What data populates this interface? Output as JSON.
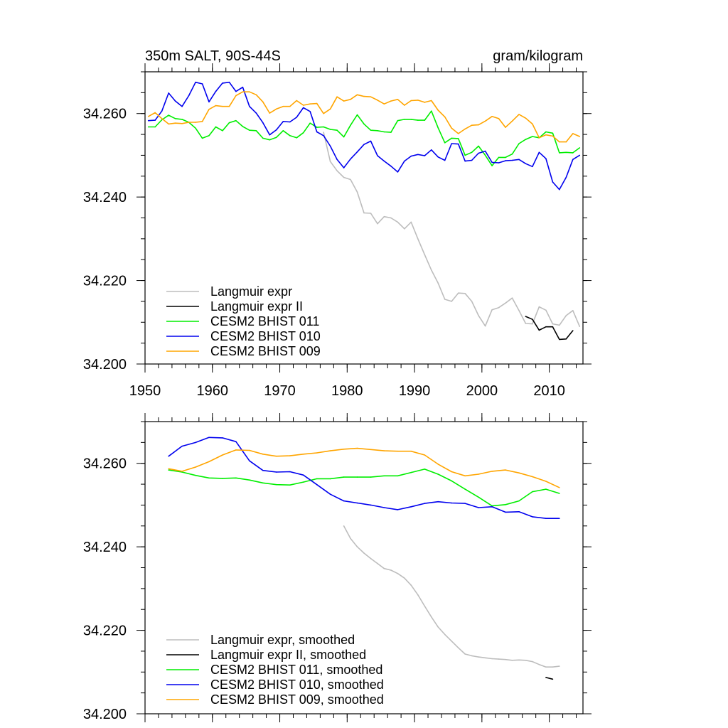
{
  "chart_data": [
    {
      "type": "line",
      "title": "350m SALT, 90S-44S",
      "units": "gram/kilogram",
      "xlabel": "",
      "ylabel": "",
      "xlim": [
        1950,
        2015
      ],
      "ylim": [
        34.2,
        34.27
      ],
      "xticks": [
        1950,
        1960,
        1970,
        1980,
        1990,
        2000,
        2010
      ],
      "xtick_labels": [
        "1950",
        "1960",
        "1970",
        "1980",
        "1990",
        "2000",
        "2010"
      ],
      "yticks": [
        34.2,
        34.22,
        34.24,
        34.26
      ],
      "ytick_labels": [
        "34.200",
        "34.220",
        "34.240",
        "34.260"
      ],
      "grid": false,
      "legend_position": "bottom-left",
      "series": [
        {
          "name": "Langmuir expr",
          "color": "#bdbdbd",
          "x": [
            1976.5,
            1977.5,
            1978.5,
            1979.5,
            1980.5,
            1981.5,
            1982.5,
            1983.5,
            1984.5,
            1985.5,
            1986.5,
            1987.5,
            1988.5,
            1989.5,
            1990.5,
            1991.5,
            1992.5,
            1993.5,
            1994.5,
            1995.5,
            1996.5,
            1997.5,
            1998.5,
            1999.5,
            2000.5,
            2001.5,
            2002.5,
            2003.5,
            2004.5,
            2005.5,
            2006.5,
            2007.5,
            2008.5,
            2009.5,
            2010.5,
            2011.5,
            2012.5,
            2013.5,
            2014.5
          ],
          "values": [
            34.2555,
            34.2485,
            34.2463,
            34.2447,
            34.2442,
            34.2412,
            34.2362,
            34.2361,
            34.2336,
            34.2353,
            34.235,
            34.234,
            34.2324,
            34.234,
            34.23,
            34.2262,
            34.2225,
            34.2194,
            34.2155,
            34.215,
            34.217,
            34.2169,
            34.215,
            34.2116,
            34.2091,
            34.213,
            34.2135,
            34.2146,
            34.2158,
            34.2128,
            34.2097,
            34.2096,
            34.2137,
            34.2129,
            34.2096,
            34.2093,
            34.2116,
            34.2128,
            34.209
          ]
        },
        {
          "name": "Langmuir expr II",
          "color": "#000000",
          "x": [
            2006.5,
            2007.5,
            2008.5,
            2009.5,
            2010.5,
            2011.5,
            2012.5,
            2013.5
          ],
          "values": [
            34.2114,
            34.2107,
            34.2081,
            34.2089,
            34.2089,
            34.2059,
            34.206,
            34.208
          ]
        },
        {
          "name": "CESM2 BHIST 011",
          "color": "#00ee00",
          "x": [
            1950.5,
            1951.5,
            1952.5,
            1953.5,
            1954.5,
            1955.5,
            1956.5,
            1957.5,
            1958.5,
            1959.5,
            1960.5,
            1961.5,
            1962.5,
            1963.5,
            1964.5,
            1965.5,
            1966.5,
            1967.5,
            1968.5,
            1969.5,
            1970.5,
            1971.5,
            1972.5,
            1973.5,
            1974.5,
            1975.5,
            1976.5,
            1977.5,
            1978.5,
            1979.5,
            1980.5,
            1981.5,
            1982.5,
            1983.5,
            1984.5,
            1985.5,
            1986.5,
            1987.5,
            1988.5,
            1989.5,
            1990.5,
            1991.5,
            1992.5,
            1993.5,
            1994.5,
            1995.5,
            1996.5,
            1997.5,
            1998.5,
            1999.5,
            2000.5,
            2001.5,
            2002.5,
            2003.5,
            2004.5,
            2005.5,
            2006.5,
            2007.5,
            2008.5,
            2009.5,
            2010.5,
            2011.5,
            2012.5,
            2013.5,
            2014.5
          ],
          "values": [
            34.2568,
            34.2568,
            34.2585,
            34.2596,
            34.2588,
            34.2586,
            34.2579,
            34.2565,
            34.2541,
            34.2547,
            34.2568,
            34.2559,
            34.2578,
            34.2583,
            34.2569,
            34.256,
            34.2559,
            34.2541,
            34.2537,
            34.2543,
            34.2559,
            34.2547,
            34.2542,
            34.2554,
            34.2577,
            34.2567,
            34.2568,
            34.2562,
            34.256,
            34.2544,
            34.2572,
            34.2597,
            34.2575,
            34.256,
            34.2559,
            34.2556,
            34.2555,
            34.2583,
            34.2586,
            34.2586,
            34.2584,
            34.2584,
            34.2606,
            34.2566,
            34.253,
            34.2541,
            34.254,
            34.25,
            34.2507,
            34.2522,
            34.25,
            34.2475,
            34.2495,
            34.2495,
            34.2503,
            34.2528,
            34.2538,
            34.2545,
            34.2542,
            34.2556,
            34.2553,
            34.2506,
            34.2507,
            34.2506,
            34.2518
          ]
        },
        {
          "name": "CESM2 BHIST 010",
          "color": "#0000ee",
          "x": [
            1950.5,
            1951.5,
            1952.5,
            1953.5,
            1954.5,
            1955.5,
            1956.5,
            1957.5,
            1958.5,
            1959.5,
            1960.5,
            1961.5,
            1962.5,
            1963.5,
            1964.5,
            1965.5,
            1966.5,
            1967.5,
            1968.5,
            1969.5,
            1970.5,
            1971.5,
            1972.5,
            1973.5,
            1974.5,
            1975.5,
            1976.5,
            1977.5,
            1978.5,
            1979.5,
            1980.5,
            1981.5,
            1982.5,
            1983.5,
            1984.5,
            1985.5,
            1986.5,
            1987.5,
            1988.5,
            1989.5,
            1990.5,
            1991.5,
            1992.5,
            1993.5,
            1994.5,
            1995.5,
            1996.5,
            1997.5,
            1998.5,
            1999.5,
            2000.5,
            2001.5,
            2002.5,
            2003.5,
            2004.5,
            2005.5,
            2006.5,
            2007.5,
            2008.5,
            2009.5,
            2010.5,
            2011.5,
            2012.5,
            2013.5,
            2014.5
          ],
          "values": [
            34.2583,
            34.2584,
            34.2606,
            34.2649,
            34.263,
            34.2617,
            34.2643,
            34.2675,
            34.2671,
            34.2628,
            34.2653,
            34.2673,
            34.2675,
            34.2653,
            34.2663,
            34.2617,
            34.2601,
            34.2578,
            34.2549,
            34.2561,
            34.2581,
            34.258,
            34.2591,
            34.2614,
            34.2605,
            34.2556,
            34.2547,
            34.2522,
            34.249,
            34.247,
            34.2491,
            34.2508,
            34.2526,
            34.2534,
            34.2499,
            34.2486,
            34.2474,
            34.246,
            34.2486,
            34.2498,
            34.2502,
            34.2499,
            34.2513,
            34.2496,
            34.2488,
            34.2528,
            34.2527,
            34.2486,
            34.2488,
            34.2505,
            34.251,
            34.2483,
            34.2482,
            34.2487,
            34.2488,
            34.249,
            34.248,
            34.2473,
            34.2507,
            34.2492,
            34.2436,
            34.2418,
            34.2447,
            34.249,
            34.25
          ]
        },
        {
          "name": "CESM2 BHIST 009",
          "color": "#ffa500",
          "x": [
            1950.5,
            1951.5,
            1952.5,
            1953.5,
            1954.5,
            1955.5,
            1956.5,
            1957.5,
            1958.5,
            1959.5,
            1960.5,
            1961.5,
            1962.5,
            1963.5,
            1964.5,
            1965.5,
            1966.5,
            1967.5,
            1968.5,
            1969.5,
            1970.5,
            1971.5,
            1972.5,
            1973.5,
            1974.5,
            1975.5,
            1976.5,
            1977.5,
            1978.5,
            1979.5,
            1980.5,
            1981.5,
            1982.5,
            1983.5,
            1984.5,
            1985.5,
            1986.5,
            1987.5,
            1988.5,
            1989.5,
            1990.5,
            1991.5,
            1992.5,
            1993.5,
            1994.5,
            1995.5,
            1996.5,
            1997.5,
            1998.5,
            1999.5,
            2000.5,
            2001.5,
            2002.5,
            2003.5,
            2004.5,
            2005.5,
            2006.5,
            2007.5,
            2008.5,
            2009.5,
            2010.5,
            2011.5,
            2012.5,
            2013.5,
            2014.5
          ],
          "values": [
            34.2593,
            34.2602,
            34.2588,
            34.2575,
            34.2577,
            34.2576,
            34.2579,
            34.2579,
            34.2581,
            34.261,
            34.2619,
            34.2617,
            34.2617,
            34.2643,
            34.2652,
            34.2652,
            34.2645,
            34.2628,
            34.2601,
            34.2611,
            34.2617,
            34.2617,
            34.2631,
            34.262,
            34.2623,
            34.2624,
            34.26,
            34.2611,
            34.264,
            34.263,
            34.2634,
            34.2645,
            34.2641,
            34.264,
            34.2632,
            34.2623,
            34.263,
            34.2634,
            34.262,
            34.2631,
            34.2632,
            34.2627,
            34.2631,
            34.2608,
            34.2592,
            34.2565,
            34.2552,
            34.2563,
            34.2572,
            34.2573,
            34.2582,
            34.2593,
            34.2588,
            34.2567,
            34.2582,
            34.2598,
            34.2589,
            34.2575,
            34.2542,
            34.2549,
            34.2546,
            34.2532,
            34.2532,
            34.2552,
            34.2545
          ]
        }
      ]
    },
    {
      "type": "line",
      "title": "",
      "xlabel": "",
      "ylabel": "",
      "xlim": [
        1950,
        2015
      ],
      "ylim": [
        34.2,
        34.27
      ],
      "xticks": [
        1950,
        1960,
        1970,
        1980,
        1990,
        2000,
        2010
      ],
      "xtick_labels": [],
      "yticks": [
        34.2,
        34.22,
        34.24,
        34.26
      ],
      "ytick_labels": [
        "34.200",
        "34.220",
        "34.240",
        "34.260"
      ],
      "grid": false,
      "legend_position": "bottom-left",
      "series": [
        {
          "name": "Langmuir expr, smoothed",
          "color": "#bdbdbd",
          "x": [
            1979.5,
            1980.5,
            1981.5,
            1982.5,
            1983.5,
            1984.5,
            1985.5,
            1986.5,
            1987.5,
            1988.5,
            1989.5,
            1990.5,
            1991.5,
            1992.5,
            1993.5,
            1994.5,
            1995.5,
            1996.5,
            1997.5,
            1998.5,
            1999.5,
            2000.5,
            2001.5,
            2002.5,
            2003.5,
            2004.5,
            2005.5,
            2006.5,
            2007.5,
            2008.5,
            2009.5,
            2010.5,
            2011.5
          ],
          "values": [
            34.245,
            34.242,
            34.24,
            34.2385,
            34.2372,
            34.236,
            34.2348,
            34.2344,
            34.2336,
            34.2325,
            34.2308,
            34.2285,
            34.2258,
            34.2232,
            34.2208,
            34.219,
            34.2174,
            34.2158,
            34.2143,
            34.2139,
            34.2136,
            34.2134,
            34.2132,
            34.2131,
            34.213,
            34.2128,
            34.2129,
            34.2128,
            34.2125,
            34.2118,
            34.2112,
            34.2112,
            34.2114
          ]
        },
        {
          "name": "Langmuir expr II, smoothed",
          "color": "#000000",
          "x": [
            2009.5,
            2010.5
          ],
          "values": [
            34.2087,
            34.2083
          ]
        },
        {
          "name": "CESM2 BHIST 011, smoothed",
          "color": "#00ee00",
          "x": [
            1953.5,
            1955.5,
            1957.5,
            1959.5,
            1961.5,
            1963.5,
            1965.5,
            1967.5,
            1969.5,
            1971.5,
            1973.5,
            1975.5,
            1977.5,
            1979.5,
            1981.5,
            1983.5,
            1985.5,
            1987.5,
            1989.5,
            1991.5,
            1993.5,
            1995.5,
            1997.5,
            1999.5,
            2001.5,
            2003.5,
            2005.5,
            2007.5,
            2009.5,
            2011.5
          ],
          "values": [
            34.2584,
            34.2579,
            34.2571,
            34.2565,
            34.2564,
            34.2565,
            34.256,
            34.2553,
            34.2549,
            34.2548,
            34.2555,
            34.2563,
            34.2563,
            34.2567,
            34.2567,
            34.2567,
            34.257,
            34.257,
            34.2578,
            34.2586,
            34.2574,
            34.2558,
            34.2538,
            34.2519,
            34.2498,
            34.2501,
            34.251,
            34.2532,
            34.2538,
            34.2528
          ]
        },
        {
          "name": "CESM2 BHIST 010, smoothed",
          "color": "#0000ee",
          "x": [
            1953.5,
            1955.5,
            1957.5,
            1959.5,
            1961.5,
            1963.5,
            1965.5,
            1967.5,
            1969.5,
            1971.5,
            1973.5,
            1975.5,
            1977.5,
            1979.5,
            1981.5,
            1983.5,
            1985.5,
            1987.5,
            1989.5,
            1991.5,
            1993.5,
            1995.5,
            1997.5,
            1999.5,
            2001.5,
            2003.5,
            2005.5,
            2007.5,
            2009.5,
            2011.5
          ],
          "values": [
            34.2617,
            34.2641,
            34.265,
            34.2662,
            34.2661,
            34.2652,
            34.2606,
            34.2583,
            34.2579,
            34.258,
            34.2572,
            34.2549,
            34.2526,
            34.251,
            34.2505,
            34.25,
            34.2494,
            34.2489,
            34.2496,
            34.2504,
            34.2508,
            34.2505,
            34.2504,
            34.2494,
            34.2496,
            34.2483,
            34.2484,
            34.2472,
            34.2468,
            34.2468
          ]
        },
        {
          "name": "CESM2 BHIST 009, smoothed",
          "color": "#ffa500",
          "x": [
            1953.5,
            1955.5,
            1957.5,
            1959.5,
            1961.5,
            1963.5,
            1965.5,
            1967.5,
            1969.5,
            1971.5,
            1973.5,
            1975.5,
            1977.5,
            1979.5,
            1981.5,
            1983.5,
            1985.5,
            1987.5,
            1989.5,
            1991.5,
            1993.5,
            1995.5,
            1997.5,
            1999.5,
            2001.5,
            2003.5,
            2005.5,
            2007.5,
            2009.5,
            2011.5
          ],
          "values": [
            34.2587,
            34.2581,
            34.2591,
            34.2604,
            34.262,
            34.2632,
            34.2631,
            34.2622,
            34.2617,
            34.2618,
            34.2622,
            34.2625,
            34.263,
            34.2634,
            34.2636,
            34.2633,
            34.263,
            34.2629,
            34.2629,
            34.262,
            34.2598,
            34.258,
            34.257,
            34.2574,
            34.2581,
            34.2584,
            34.2577,
            34.2568,
            34.2557,
            34.2542
          ]
        }
      ]
    }
  ]
}
